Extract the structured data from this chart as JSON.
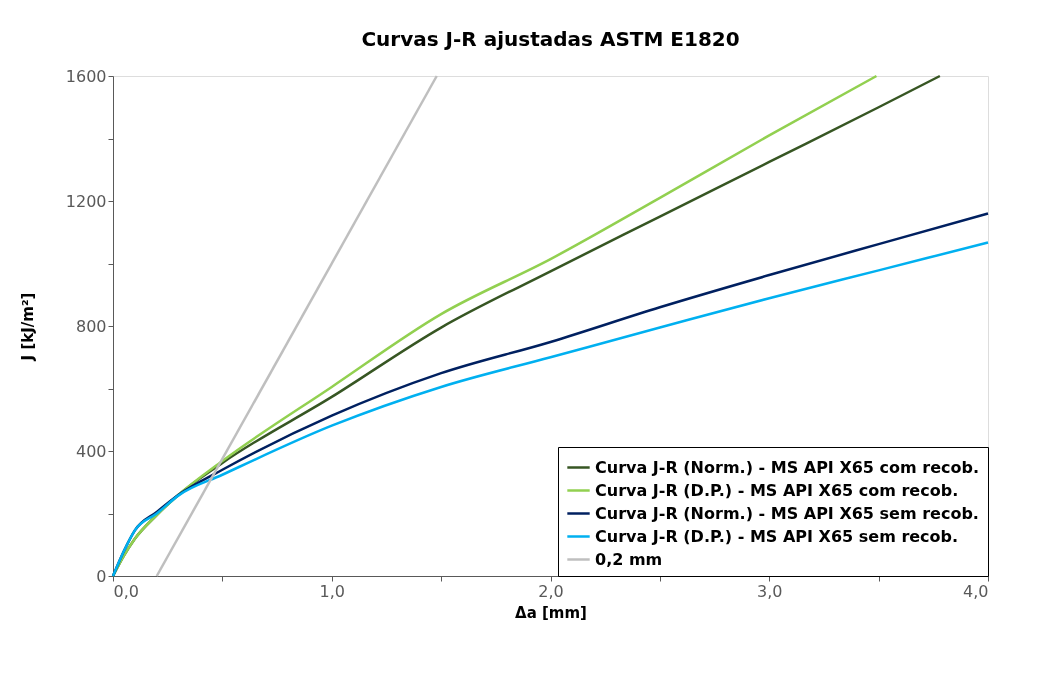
{
  "chart_data": {
    "type": "line",
    "title": "Curvas J-R ajustadas ASTM E1820",
    "xlabel": "Δa [mm]",
    "ylabel": "J [kJ/m²]",
    "xlim": [
      0,
      4
    ],
    "ylim": [
      0,
      1600
    ],
    "xticks": [
      {
        "value": 0,
        "label": "0,0"
      },
      {
        "value": 0.5,
        "label": null
      },
      {
        "value": 1,
        "label": "1,0"
      },
      {
        "value": 1.5,
        "label": null
      },
      {
        "value": 2,
        "label": "2,0"
      },
      {
        "value": 2.5,
        "label": null
      },
      {
        "value": 3,
        "label": "3,0"
      },
      {
        "value": 3.5,
        "label": null
      },
      {
        "value": 4,
        "label": "4,0"
      }
    ],
    "yticks": [
      0,
      {
        "value": 200,
        "label": null
      },
      400,
      {
        "value": 600,
        "label": null
      },
      800,
      {
        "value": 1000,
        "label": null
      },
      1200,
      {
        "value": 1400,
        "label": null
      },
      1600
    ],
    "grid": false,
    "legend": "bottom right",
    "marker": "none",
    "line_style": "solid",
    "series": [
      {
        "name": "Curva J-R (Norm.) - MS API X65 com recob.",
        "color": "#375623",
        "x": [
          0,
          0.05,
          0.1,
          0.2,
          0.3,
          0.5,
          1,
          1.5,
          2,
          2.5,
          3,
          3.5,
          3.78
        ],
        "values": [
          0,
          65,
          119,
          195,
          260,
          362,
          573,
          795,
          975,
          1150,
          1325,
          1500,
          1600
        ]
      },
      {
        "name": "Curva J-R (D.P.) - MS API X65 com recob.",
        "color": "#92d050",
        "x": [
          0,
          0.05,
          0.1,
          0.2,
          0.3,
          0.5,
          1,
          1.5,
          2,
          2.5,
          3,
          3.49
        ],
        "values": [
          0,
          65,
          119,
          195,
          260,
          368,
          605,
          838,
          1014,
          1210,
          1410,
          1600
        ]
      },
      {
        "name": "Curva J-R (Norm.) - MS API X65 sem recob.",
        "color": "#002060",
        "x": [
          0,
          0.05,
          0.1,
          0.2,
          0.3,
          0.5,
          1,
          1.5,
          2,
          2.5,
          3,
          3.5,
          4
        ],
        "values": [
          0,
          80,
          146,
          205,
          260,
          340,
          513,
          649,
          749,
          860,
          963,
          1062,
          1160
        ]
      },
      {
        "name": "Curva J-R (D.P.) - MS API X65 sem recob.",
        "color": "#00b0f0",
        "x": [
          0,
          0.05,
          0.1,
          0.2,
          0.3,
          0.5,
          1,
          1.5,
          2,
          2.5,
          3,
          3.5,
          4
        ],
        "values": [
          0,
          80,
          146,
          200,
          258,
          324,
          481,
          605,
          700,
          795,
          889,
          978,
          1067
        ]
      },
      {
        "name": "0,2 mm",
        "color": "#bfbfbf",
        "x": [
          0.2,
          1.48
        ],
        "values": [
          0,
          1600
        ]
      }
    ]
  }
}
